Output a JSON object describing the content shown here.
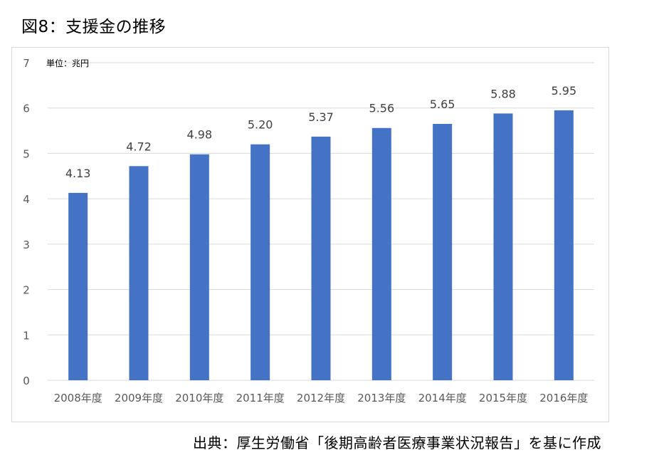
{
  "figure_title": "図8：支援金の推移",
  "source_note": "出典：厚生労働省「後期高齢者医療事業状況報告」を基に作成",
  "chart_data": {
    "type": "bar",
    "title": "",
    "unit_label": "単位：兆円",
    "xlabel": "",
    "ylabel": "",
    "ylim": [
      0,
      7
    ],
    "yticks": [
      "0",
      "1",
      "2",
      "3",
      "4",
      "5",
      "6",
      "7"
    ],
    "grid": true,
    "legend": "none",
    "bar_color": "#4472C4",
    "grid_color": "#d9d9d9",
    "categories": [
      "2008年度",
      "2009年度",
      "2010年度",
      "2011年度",
      "2012年度",
      "2013年度",
      "2014年度",
      "2015年度",
      "2016年度"
    ],
    "values": [
      4.13,
      4.72,
      4.98,
      5.2,
      5.37,
      5.56,
      5.65,
      5.88,
      5.95
    ],
    "data_labels": [
      "4.13",
      "4.72",
      "4.98",
      "5.20",
      "5.37",
      "5.56",
      "5.65",
      "5.88",
      "5.95"
    ]
  }
}
